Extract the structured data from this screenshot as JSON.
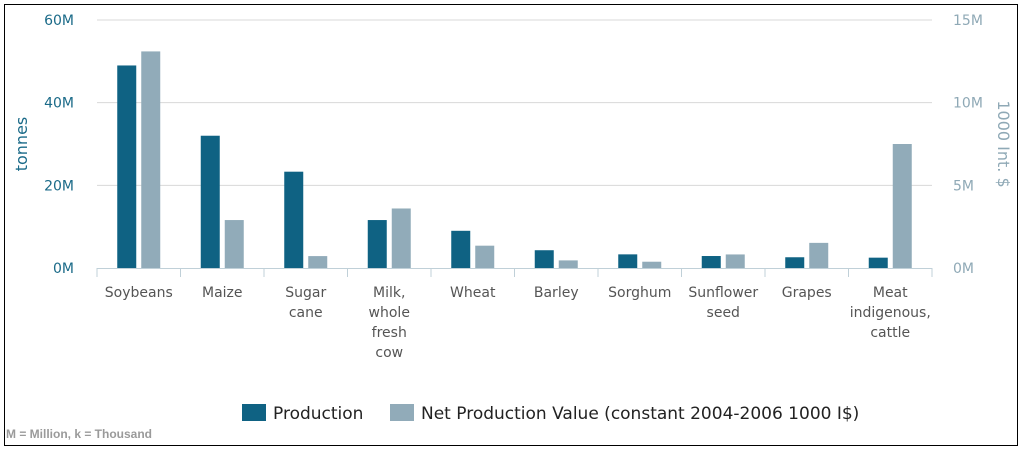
{
  "chart_data": {
    "type": "bar",
    "categories": [
      [
        "Soybeans"
      ],
      [
        "Maize"
      ],
      [
        "Sugar",
        "cane"
      ],
      [
        "Milk,",
        "whole",
        "fresh",
        "cow"
      ],
      [
        "Wheat"
      ],
      [
        "Barley"
      ],
      [
        "Sorghum"
      ],
      [
        "Sunflower",
        "seed"
      ],
      [
        "Grapes"
      ],
      [
        "Meat",
        "indigenous,",
        "cattle"
      ]
    ],
    "series": [
      {
        "name": "Production",
        "axis": "left",
        "color": "#0f6283",
        "values": [
          49000000,
          32000000,
          23300000,
          11600000,
          9000000,
          4300000,
          3300000,
          2900000,
          2600000,
          2500000
        ]
      },
      {
        "name": "Net Production Value (constant 2004-2006 1000 I$)",
        "axis": "right",
        "color": "#91abb9",
        "values": [
          13100000,
          2900000,
          720000,
          3600000,
          1350000,
          460000,
          380000,
          820000,
          1520000,
          7500000
        ]
      }
    ],
    "y_left": {
      "label": "tonnes",
      "range": [
        0,
        60000000
      ],
      "ticks": [
        "0M",
        "20M",
        "40M",
        "60M"
      ],
      "tick_values": [
        0,
        20000000,
        40000000,
        60000000
      ]
    },
    "y_right": {
      "label": "1000 Int. $",
      "range": [
        0,
        15000000
      ],
      "ticks": [
        "0M",
        "5M",
        "10M",
        "15M"
      ],
      "tick_values": [
        0,
        5000000,
        10000000,
        15000000
      ]
    },
    "grid": true,
    "legend_position": "bottom-center"
  },
  "footnote": "M = Million, k = Thousand"
}
